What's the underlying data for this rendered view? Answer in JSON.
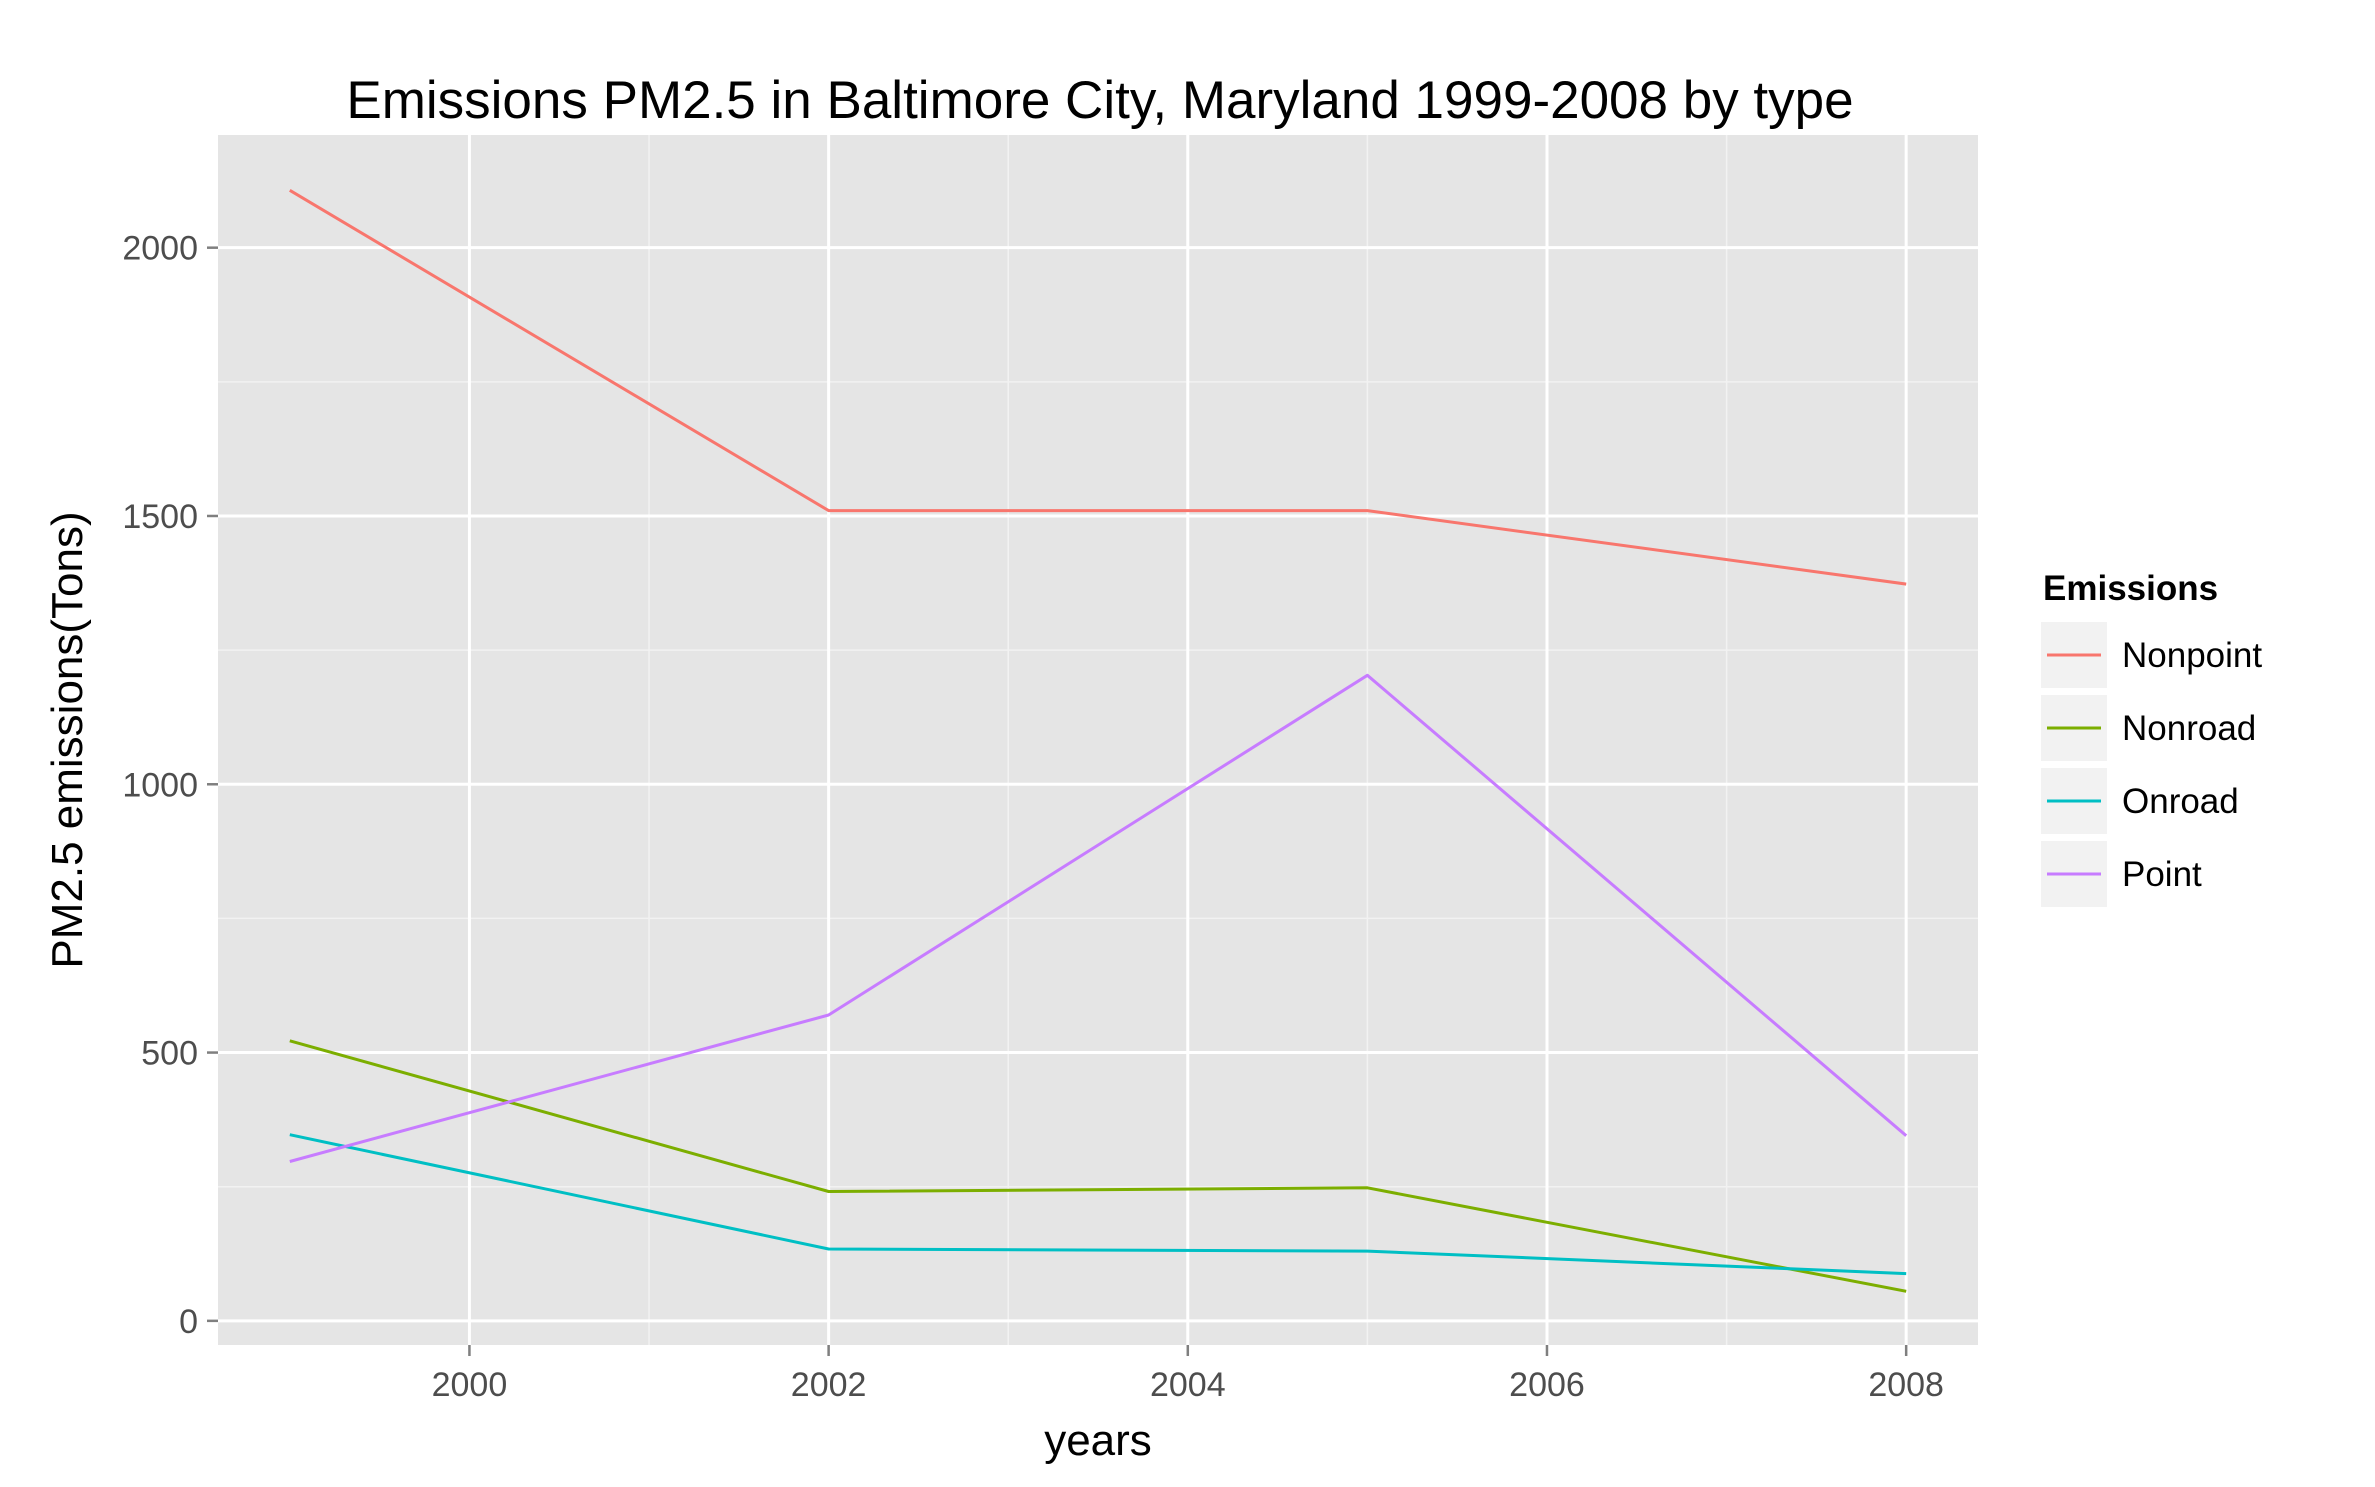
{
  "chart_data": {
    "type": "line",
    "title": "Emissions PM2.5 in Baltimore City, Maryland 1999-2008 by type",
    "xlabel": "years",
    "ylabel": "PM2.5 emissions(Tons)",
    "x": [
      1999,
      2002,
      2005,
      2008
    ],
    "xlim": [
      1998.6,
      2008.4
    ],
    "ylim": [
      -45,
      2210
    ],
    "x_ticks": [
      2000,
      2002,
      2004,
      2006,
      2008
    ],
    "x_tick_labels": [
      "2000",
      "2002",
      "2004",
      "2006",
      "2008"
    ],
    "y_ticks": [
      0,
      500,
      1000,
      1500,
      2000
    ],
    "y_tick_labels": [
      "0",
      "500",
      "1000",
      "1500",
      "2000"
    ],
    "grid": true,
    "legend": {
      "title": "Emissions",
      "position": "right"
    },
    "series": [
      {
        "name": "Nonpoint",
        "color": "#F8766D",
        "values": [
          2107,
          1510,
          1510,
          1373
        ]
      },
      {
        "name": "Nonroad",
        "color": "#7CAE00",
        "values": [
          522,
          241,
          248,
          55
        ]
      },
      {
        "name": "Onroad",
        "color": "#00BFC4",
        "values": [
          347,
          134,
          130,
          88
        ]
      },
      {
        "name": "Point",
        "color": "#C77CFF",
        "values": [
          297,
          570,
          1203,
          345
        ]
      }
    ]
  }
}
